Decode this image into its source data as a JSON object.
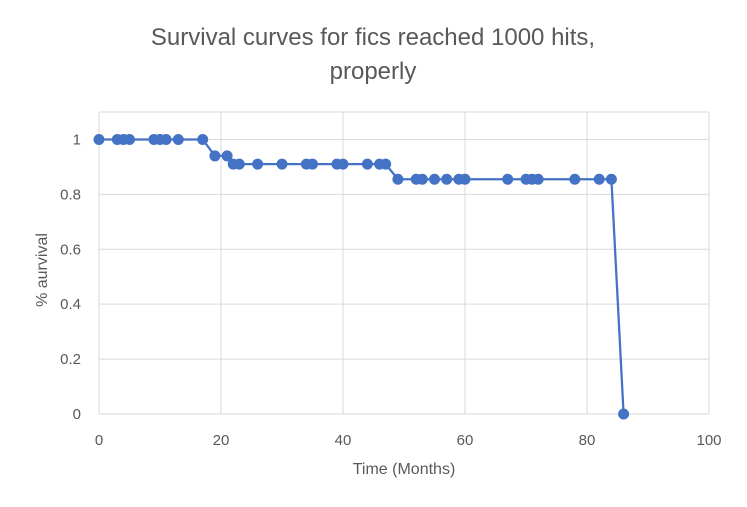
{
  "chart_data": {
    "type": "line",
    "title": "Survival curves for fics reached 1000 hits, properly",
    "title_lines": [
      "Survival curves for fics reached 1000 hits,",
      "properly"
    ],
    "xlabel": "Time (Months)",
    "ylabel": "% aurvival",
    "xlim": [
      0,
      100
    ],
    "ylim": [
      0,
      1.1
    ],
    "xticks": [
      0,
      20,
      40,
      60,
      80,
      100
    ],
    "yticks": [
      0,
      0.2,
      0.4,
      0.6,
      0.8,
      1
    ],
    "xtick_labels": [
      "0",
      "20",
      "40",
      "60",
      "80",
      "100"
    ],
    "ytick_labels": [
      "0",
      "0.2",
      "0.4",
      "0.6",
      "0.8",
      "1"
    ],
    "grid": {
      "x": true,
      "y": true
    },
    "legend": "none",
    "series": [
      {
        "color": "#4472C4",
        "x": [
          0,
          3,
          4,
          5,
          9,
          10,
          11,
          13,
          17,
          19,
          21,
          22,
          23,
          26,
          30,
          34,
          35,
          39,
          40,
          44,
          46,
          47,
          49,
          52,
          53,
          55,
          57,
          59,
          60,
          67,
          70,
          71,
          72,
          78,
          82,
          84,
          86
        ],
        "y": [
          1,
          1,
          1,
          1,
          1,
          1,
          1,
          1,
          1,
          0.94,
          0.94,
          0.91,
          0.91,
          0.91,
          0.91,
          0.91,
          0.91,
          0.91,
          0.91,
          0.91,
          0.91,
          0.91,
          0.855,
          0.855,
          0.855,
          0.855,
          0.855,
          0.855,
          0.855,
          0.855,
          0.855,
          0.855,
          0.855,
          0.855,
          0.855,
          0.855,
          0
        ]
      }
    ]
  },
  "colors": {
    "grid": "#D9D9D9",
    "text": "#595959",
    "series": "#4472C4"
  }
}
